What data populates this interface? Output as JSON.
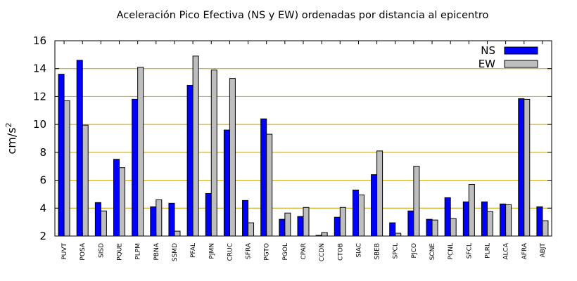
{
  "chart_data": {
    "type": "bar",
    "title": "Aceleración Pico Efectiva (NS y EW) ordenadas por distancia al epicentro",
    "xlabel": "",
    "ylabel_base": "cm/s",
    "ylabel_exp": "2",
    "ylim": [
      2,
      16
    ],
    "yticks": [
      2,
      4,
      6,
      8,
      10,
      12,
      14,
      16
    ],
    "grid": "horizontal",
    "legend_position": "top-right",
    "categories": [
      "PUVT",
      "POSA",
      "SISD",
      "PQUE",
      "PLPM",
      "PBNA",
      "SSMD",
      "PFAL",
      "PJMN",
      "CRUC",
      "SFRA",
      "PGTO",
      "PGOL",
      "CPAR",
      "CCDN",
      "CTOB",
      "SIAC",
      "SBEB",
      "SPCL",
      "PJCO",
      "SCNE",
      "PCNL",
      "SFCL",
      "PLRL",
      "ALCA",
      "AFRA",
      "ABJT"
    ],
    "series": [
      {
        "name": "NS",
        "color": "#0000ff",
        "values": [
          13.6,
          14.6,
          4.4,
          7.5,
          11.8,
          4.1,
          4.35,
          12.8,
          5.05,
          9.6,
          4.55,
          10.4,
          3.2,
          3.4,
          2.05,
          3.35,
          5.3,
          6.4,
          2.95,
          3.8,
          3.2,
          4.75,
          4.45,
          4.45,
          4.3,
          11.85,
          4.1
        ]
      },
      {
        "name": "EW",
        "color": "#bebebe",
        "values": [
          11.7,
          9.95,
          3.8,
          6.9,
          14.1,
          4.6,
          2.35,
          14.9,
          13.9,
          13.3,
          2.95,
          9.3,
          3.65,
          4.05,
          2.25,
          4.05,
          4.95,
          8.1,
          2.2,
          7.0,
          3.15,
          3.25,
          5.7,
          3.75,
          4.25,
          11.8,
          3.1
        ]
      }
    ]
  },
  "colors": {
    "grid": "#c8a000",
    "axis": "#000000"
  }
}
